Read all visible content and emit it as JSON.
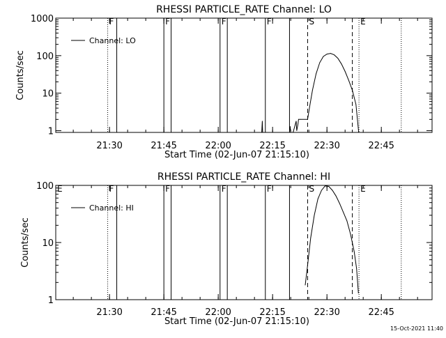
{
  "footer": {
    "timestamp": "15-Oct-2021 11:40"
  },
  "chart_data": [
    {
      "type": "line",
      "title": "RHESSI  PARTICLE_RATE  Channel:  LO",
      "xlabel": "Start Time (02-Jun-07 21:15:10)",
      "ylabel": "Counts/sec",
      "y_scale": "log",
      "ylim": [
        0.9,
        1000
      ],
      "xlim": [
        "21:15:10",
        "22:59:00"
      ],
      "x_ticks": [
        "21:30",
        "21:45",
        "22:00",
        "22:15",
        "22:30",
        "22:45"
      ],
      "y_ticks": [
        "1",
        "10",
        "100",
        "1000"
      ],
      "grid": false,
      "legend": {
        "position": "top-left",
        "entries": [
          "Channel: LO"
        ]
      },
      "series": [
        {
          "name": "Channel: LO",
          "x": [
            "22:12:00",
            "22:12:10",
            "22:12:15",
            "22:19:40",
            "22:19:50",
            "22:20:00",
            "22:20:40",
            "22:21:30",
            "22:21:40",
            "22:22:00",
            "22:22:10",
            "22:22:40",
            "22:24:40",
            "22:25:10",
            "22:26:00",
            "22:27:00",
            "22:28:00",
            "22:29:00",
            "22:30:00",
            "22:31:00",
            "22:32:00",
            "22:33:00",
            "22:34:00",
            "22:35:00",
            "22:36:00",
            "22:37:00",
            "22:38:00",
            "22:38:45"
          ],
          "y": [
            0.9,
            1.8,
            0.9,
            0.9,
            1.3,
            0.9,
            0.9,
            1.8,
            1.0,
            1.5,
            2.0,
            2.0,
            2.0,
            4.0,
            12,
            33,
            65,
            95,
            110,
            115,
            105,
            85,
            60,
            38,
            22,
            12,
            5,
            0.9
          ]
        }
      ],
      "annotations": [
        {
          "label": "F",
          "time": "21:29:30",
          "edge": "start",
          "style": "dotted"
        },
        {
          "label": "",
          "time": "21:32:00",
          "edge": "end",
          "style": "solid"
        },
        {
          "label": "F",
          "time": "21:45:00",
          "edge": "start",
          "style": "solid"
        },
        {
          "label": "",
          "time": "21:47:00",
          "edge": "end",
          "style": "solid"
        },
        {
          "label": "F",
          "time": "22:00:30",
          "edge": "start",
          "style": "solid"
        },
        {
          "label": "",
          "time": "22:02:30",
          "edge": "end",
          "style": "solid"
        },
        {
          "label": "F",
          "time": "22:13:00",
          "edge": "start",
          "style": "solid"
        },
        {
          "label": "",
          "time": "22:19:40",
          "edge": "end",
          "style": "solid"
        },
        {
          "label": "S",
          "time": "22:24:40",
          "edge": "start",
          "style": "dashed"
        },
        {
          "label": "",
          "time": "22:37:00",
          "edge": "end",
          "style": "dashed"
        },
        {
          "label": "E",
          "time": "22:38:50",
          "edge": "start",
          "style": "dotted"
        },
        {
          "label": "",
          "time": "22:50:30",
          "edge": "end",
          "style": "dotted"
        }
      ]
    },
    {
      "type": "line",
      "title": "RHESSI  PARTICLE_RATE  Channel:  HI",
      "xlabel": "Start Time (02-Jun-07 21:15:10)",
      "ylabel": "Counts/sec",
      "y_scale": "log",
      "ylim": [
        1,
        100
      ],
      "xlim": [
        "21:15:10",
        "22:59:00"
      ],
      "x_ticks": [
        "21:30",
        "21:45",
        "22:00",
        "22:15",
        "22:30",
        "22:45"
      ],
      "y_ticks": [
        "1",
        "10",
        "100"
      ],
      "grid": false,
      "legend": {
        "position": "top-left",
        "entries": [
          "Channel: HI"
        ]
      },
      "series": [
        {
          "name": "Channel: HI",
          "x": [
            "22:24:00",
            "22:24:40",
            "22:25:30",
            "22:26:30",
            "22:27:30",
            "22:28:30",
            "22:29:30",
            "22:30:30",
            "22:31:30",
            "22:32:30",
            "22:33:30",
            "22:34:30",
            "22:35:30",
            "22:36:30",
            "22:37:30",
            "22:38:10",
            "22:38:40"
          ],
          "y": [
            1.8,
            4,
            12,
            30,
            58,
            82,
            98,
            96,
            82,
            65,
            48,
            34,
            24,
            14,
            7,
            3.5,
            1.3
          ]
        }
      ],
      "annotations": [
        {
          "label": "E",
          "time": "21:15:10",
          "edge": "start",
          "style": "solid"
        },
        {
          "label": "F",
          "time": "21:29:30",
          "edge": "start",
          "style": "dotted"
        },
        {
          "label": "",
          "time": "21:32:00",
          "edge": "end",
          "style": "solid"
        },
        {
          "label": "F",
          "time": "21:45:00",
          "edge": "start",
          "style": "solid"
        },
        {
          "label": "",
          "time": "21:47:00",
          "edge": "end",
          "style": "solid"
        },
        {
          "label": "F",
          "time": "22:00:30",
          "edge": "start",
          "style": "solid"
        },
        {
          "label": "",
          "time": "22:02:30",
          "edge": "end",
          "style": "solid"
        },
        {
          "label": "F",
          "time": "22:13:00",
          "edge": "start",
          "style": "solid"
        },
        {
          "label": "",
          "time": "22:19:40",
          "edge": "end",
          "style": "solid"
        },
        {
          "label": "S",
          "time": "22:24:40",
          "edge": "start",
          "style": "dashed"
        },
        {
          "label": "",
          "time": "22:37:00",
          "edge": "end",
          "style": "dashed"
        },
        {
          "label": "E",
          "time": "22:38:50",
          "edge": "start",
          "style": "dotted"
        },
        {
          "label": "",
          "time": "22:50:30",
          "edge": "end",
          "style": "dotted"
        }
      ]
    }
  ]
}
